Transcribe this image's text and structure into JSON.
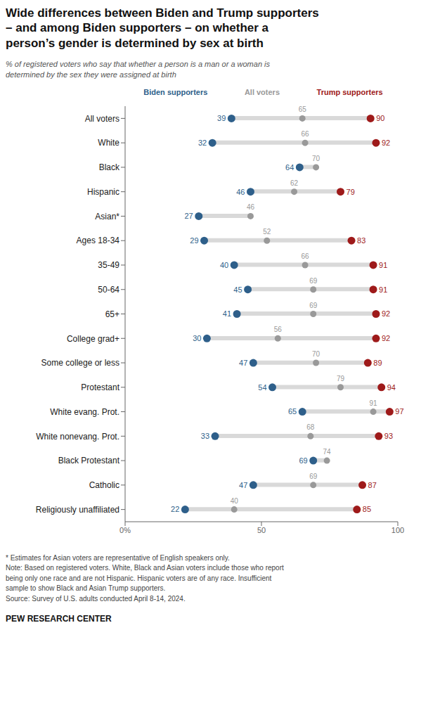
{
  "chart_data": {
    "type": "dot",
    "title": "Wide differences between Biden and Trump supporters\n– and among Biden supporters – on whether a\nperson’s gender is determined by sex at birth",
    "subtitle": "% of registered voters who say that whether a person is a man or a woman is\ndetermined by the sex they were assigned at birth",
    "orientation": "horizontal",
    "categories": [
      "All voters",
      "White",
      "Black",
      "Hispanic",
      "Asian*",
      "Ages 18-34",
      "35-49",
      "50-64",
      "65+",
      "College grad+",
      "Some college or less",
      "Protestant",
      "White evang. Prot.",
      "White nonevang. Prot.",
      "Black Protestant",
      "Catholic",
      "Religiously unaffiliated"
    ],
    "series": [
      {
        "name": "Biden supporters",
        "color": "#2E5F8A",
        "values": [
          39,
          32,
          64,
          46,
          27,
          29,
          40,
          45,
          41,
          30,
          47,
          54,
          65,
          33,
          69,
          47,
          22
        ]
      },
      {
        "name": "All voters",
        "color": "#999999",
        "values": [
          65,
          66,
          70,
          62,
          46,
          52,
          66,
          69,
          69,
          56,
          70,
          79,
          91,
          68,
          74,
          69,
          40
        ]
      },
      {
        "name": "Trump supporters",
        "color": "#9e1a1a",
        "values": [
          90,
          92,
          null,
          79,
          null,
          83,
          91,
          91,
          92,
          92,
          89,
          94,
          97,
          93,
          null,
          87,
          85
        ]
      }
    ],
    "xlim": [
      0,
      100
    ],
    "xticks": [
      {
        "value": 0,
        "label": "0%"
      },
      50,
      100
    ],
    "data_labels": true,
    "annotations": [
      "* Estimates for Asian voters are representative of English speakers only.\nNote: Based on registered voters. White, Black and Asian voters include those who report\nbeing only one race and are not Hispanic. Hispanic voters are of any race. Insufficient\nsample to show Black and Asian Trump supporters.\nSource: Survey of U.S. adults conducted April 8-14, 2024.",
      "PEW RESEARCH CENTER"
    ]
  }
}
